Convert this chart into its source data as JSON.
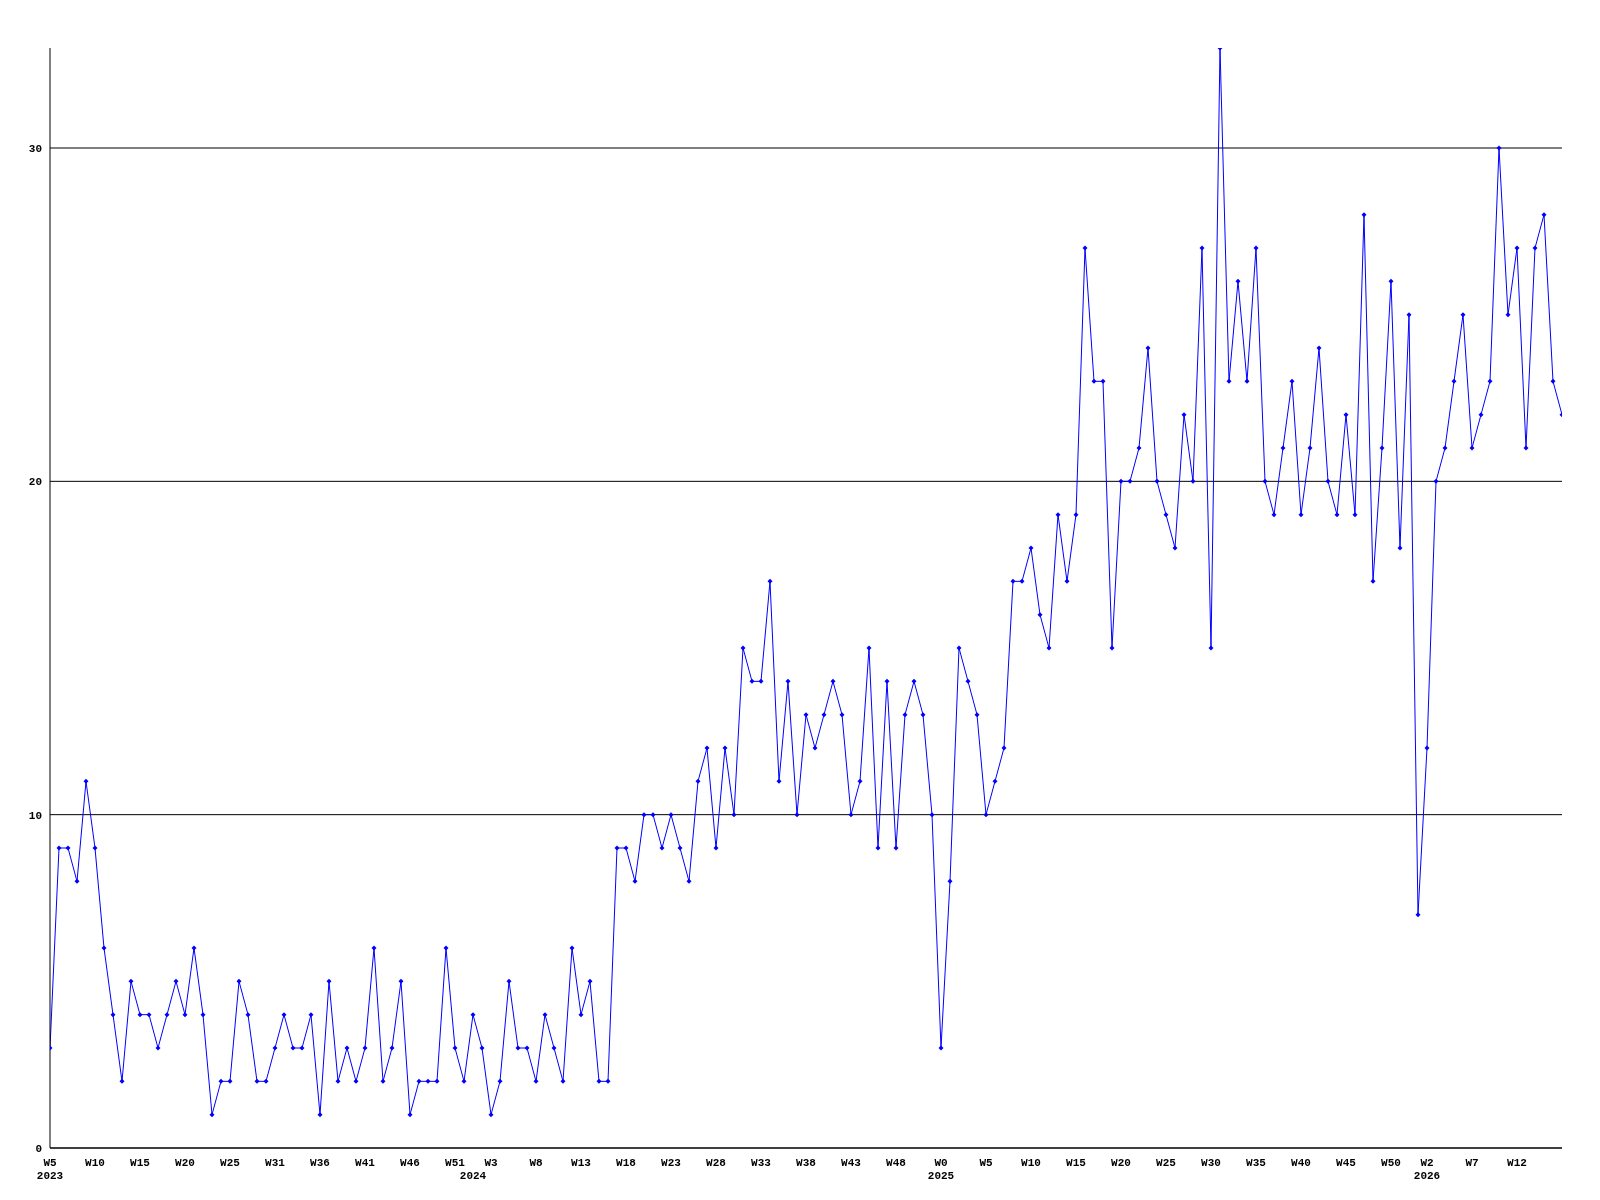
{
  "chart_data": {
    "type": "line",
    "categories": [
      "W5\n2023",
      null,
      null,
      null,
      null,
      "W10",
      null,
      null,
      null,
      null,
      "W15",
      null,
      null,
      null,
      null,
      "W20",
      null,
      null,
      null,
      null,
      "W25",
      null,
      null,
      null,
      null,
      "W31",
      null,
      null,
      null,
      null,
      "W36",
      null,
      null,
      null,
      null,
      "W41",
      null,
      null,
      null,
      null,
      "W46",
      null,
      null,
      null,
      null,
      "W51",
      null,
      "\n2024",
      null,
      "W3",
      null,
      null,
      null,
      null,
      "W8",
      null,
      null,
      null,
      null,
      "W13",
      null,
      null,
      null,
      null,
      "W18",
      null,
      null,
      null,
      null,
      "W23",
      null,
      null,
      null,
      null,
      "W28",
      null,
      null,
      null,
      null,
      "W33",
      null,
      null,
      null,
      null,
      "W38",
      null,
      null,
      null,
      null,
      "W43",
      null,
      null,
      null,
      null,
      "W48",
      null,
      null,
      null,
      null,
      "W0\n2025",
      null,
      null,
      null,
      null,
      "W5",
      null,
      null,
      null,
      null,
      "W10",
      null,
      null,
      null,
      null,
      "W15",
      null,
      null,
      null,
      null,
      "W20",
      null,
      null,
      null,
      null,
      "W25",
      null,
      null,
      null,
      null,
      "W30",
      null,
      null,
      null,
      null,
      "W35",
      null,
      null,
      null,
      null,
      "W40",
      null,
      null,
      null,
      null,
      "W45",
      null,
      null,
      null,
      null,
      "W50",
      null,
      null,
      null,
      "W2\n2026",
      null,
      null,
      null,
      null,
      "W7",
      null,
      null,
      null,
      null,
      "W12",
      null,
      null,
      null,
      null,
      null
    ],
    "series": [
      {
        "color": "#0000ff",
        "values": [
          3,
          9,
          9,
          8,
          11,
          9,
          6,
          4,
          2,
          5,
          4,
          4,
          3,
          4,
          5,
          4,
          6,
          4,
          1,
          2,
          2,
          5,
          4,
          2,
          2,
          3,
          4,
          3,
          3,
          4,
          1,
          5,
          2,
          3,
          2,
          3,
          6,
          2,
          3,
          5,
          1,
          2,
          2,
          2,
          6,
          3,
          2,
          4,
          3,
          1,
          2,
          5,
          3,
          3,
          2,
          4,
          3,
          2,
          6,
          4,
          5,
          2,
          2,
          9,
          9,
          8,
          10,
          10,
          9,
          10,
          9,
          8,
          11,
          12,
          9,
          12,
          10,
          15,
          14,
          14,
          17,
          11,
          14,
          10,
          13,
          12,
          13,
          14,
          13,
          10,
          11,
          15,
          9,
          14,
          9,
          13,
          14,
          13,
          10,
          3,
          8,
          15,
          14,
          13,
          10,
          11,
          12,
          17,
          17,
          18,
          16,
          15,
          19,
          17,
          19,
          27,
          23,
          23,
          15,
          20,
          20,
          21,
          24,
          20,
          19,
          18,
          22,
          20,
          27,
          15,
          33,
          23,
          26,
          23,
          27,
          20,
          19,
          21,
          23,
          19,
          21,
          24,
          20,
          19,
          22,
          19,
          28,
          17,
          21,
          26,
          18,
          25,
          7,
          12,
          20,
          21,
          23,
          25,
          21,
          22,
          23,
          30,
          25,
          27,
          21,
          27,
          28,
          23,
          22
        ]
      }
    ],
    "ylim": [
      0,
      33
    ],
    "yticks": [
      0,
      10,
      20,
      30
    ],
    "grid": "y",
    "marker": "diamond",
    "line_style": "solid"
  }
}
